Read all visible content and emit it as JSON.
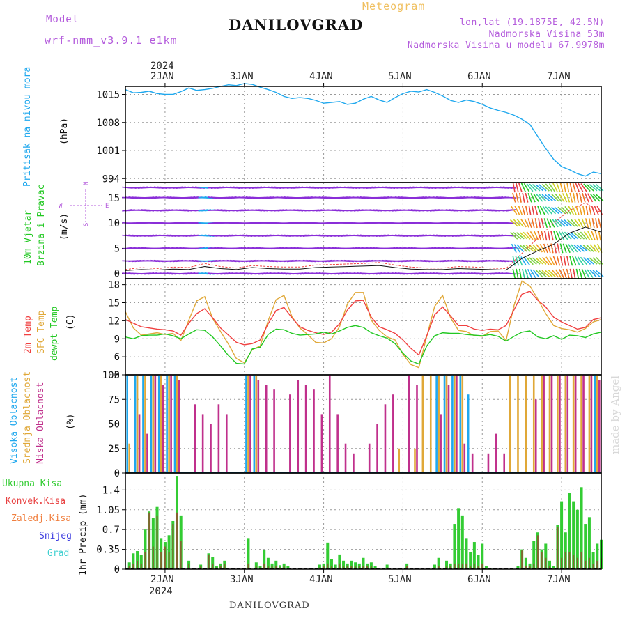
{
  "header": {
    "model_label": "Model",
    "model_name": "wrf-nmm_v3.9.1 e1km",
    "title": "DANILOVGRAD",
    "subtitle": "Meteogram",
    "lonlat": "lon,lat (19.1875E, 42.5N)",
    "elevation": "Nadmorska Visina 53m",
    "model_elevation": "Nadmorska Visina u modelu 67.9978m"
  },
  "footer": {
    "station": "DANILOVGRAD",
    "watermark": "made by Angel"
  },
  "colors": {
    "pressure": "#1fa8ee",
    "temp2m": "#f04040",
    "sfc": "#e0a838",
    "dewpt": "#22c822",
    "high_cloud": "#1fa8ee",
    "mid_cloud": "#e0a838",
    "low_cloud": "#c0308c",
    "wind_barb": "#8a2ed8",
    "total_precip": "#33cc33",
    "conv_precip": "#e84040",
    "frozen_precip": "#f08040",
    "snow": "#4040e0",
    "hail": "#40d0d0",
    "grid": "#999999"
  },
  "chart_data": [
    {
      "type": "line",
      "panel": "pressure",
      "ylabel": "Pritisak na nivou mora",
      "unit": "(hPa)",
      "x_ticks_top": [
        "2JAN",
        "3JAN",
        "4JAN",
        "5JAN",
        "6JAN",
        "7JAN"
      ],
      "year_top": "2024",
      "yticks": [
        994,
        1001,
        1008,
        1015
      ],
      "ylim": [
        993,
        1017
      ],
      "x": [
        1.5,
        1.6,
        1.7,
        1.8,
        1.9,
        2.0,
        2.1,
        2.2,
        2.3,
        2.4,
        2.5,
        2.6,
        2.7,
        2.8,
        2.9,
        3.0,
        3.1,
        3.2,
        3.3,
        3.4,
        3.5,
        3.6,
        3.7,
        3.8,
        3.9,
        4.0,
        4.1,
        4.2,
        4.3,
        4.4,
        4.5,
        4.6,
        4.7,
        4.8,
        4.9,
        5.0,
        5.1,
        5.2,
        5.3,
        5.4,
        5.5,
        5.6,
        5.7,
        5.8,
        5.9,
        6.0,
        6.1,
        6.2,
        6.3,
        6.4,
        6.5,
        6.6,
        6.7,
        6.8,
        6.9,
        7.0,
        7.1,
        7.2,
        7.3,
        7.4,
        7.5
      ],
      "values": [
        1016.2,
        1015.4,
        1015.5,
        1015.8,
        1015.2,
        1015.0,
        1015.0,
        1015.7,
        1016.6,
        1016.0,
        1016.2,
        1016.5,
        1017.0,
        1017.4,
        1017.2,
        1017.7,
        1017.5,
        1016.8,
        1016.2,
        1015.5,
        1014.5,
        1014.0,
        1014.2,
        1014.0,
        1013.5,
        1012.8,
        1013.0,
        1013.2,
        1012.5,
        1012.8,
        1013.8,
        1014.5,
        1013.6,
        1013.0,
        1014.2,
        1015.2,
        1015.8,
        1015.6,
        1016.2,
        1015.5,
        1014.6,
        1013.5,
        1013.0,
        1013.6,
        1013.2,
        1012.5,
        1011.6,
        1011.0,
        1010.5,
        1009.8,
        1008.8,
        1007.5,
        1004.5,
        1001.5,
        998.8,
        997.0,
        996.2,
        995.2,
        994.6,
        995.6,
        995.2
      ]
    },
    {
      "type": "line",
      "panel": "wind",
      "ylabel_lines": [
        "10m Vjetar",
        "Brzina i Pravac"
      ],
      "unit": "(m/s)",
      "compass": {
        "n": "N",
        "w": "W",
        "e": "E",
        "s": "S"
      },
      "yticks": [
        0,
        5,
        10,
        15
      ],
      "ylim": [
        -1,
        18
      ],
      "x": [
        1.5,
        1.7,
        1.9,
        2.1,
        2.3,
        2.5,
        2.7,
        2.9,
        3.1,
        3.3,
        3.5,
        3.7,
        3.9,
        4.1,
        4.3,
        4.5,
        4.7,
        4.9,
        5.1,
        5.3,
        5.5,
        5.7,
        5.9,
        6.1,
        6.3,
        6.5,
        6.7,
        6.9,
        7.1,
        7.3,
        7.5
      ],
      "speed_10m": [
        0.6,
        0.8,
        0.7,
        0.9,
        0.8,
        1.4,
        1.0,
        0.8,
        1.2,
        1.0,
        0.9,
        0.9,
        1.2,
        1.3,
        1.4,
        1.5,
        1.6,
        1.2,
        0.9,
        0.8,
        0.8,
        1.0,
        0.9,
        0.8,
        0.7,
        3.0,
        4.5,
        5.8,
        8.0,
        9.2,
        8.2
      ],
      "gust": [
        0.8,
        1.2,
        1.0,
        1.3,
        1.2,
        2.0,
        1.4,
        1.1,
        1.6,
        1.4,
        1.3,
        1.3,
        1.7,
        1.8,
        1.9,
        2.0,
        2.2,
        1.7,
        1.3,
        1.1,
        1.1,
        1.4,
        1.3,
        1.1,
        1.0,
        4.0,
        7.0,
        10.0,
        12.5,
        14.0,
        12.0
      ]
    },
    {
      "type": "line",
      "panel": "temperature",
      "series_labels": [
        "2m Temp",
        "SFC Temp",
        "dewpt Temp"
      ],
      "unit": "(C)",
      "yticks": [
        3,
        6,
        9,
        12,
        15,
        18
      ],
      "ylim": [
        3,
        19
      ],
      "x": [
        1.5,
        1.6,
        1.7,
        1.8,
        1.9,
        2.0,
        2.1,
        2.2,
        2.3,
        2.4,
        2.5,
        2.6,
        2.7,
        2.8,
        2.9,
        3.0,
        3.1,
        3.2,
        3.3,
        3.4,
        3.5,
        3.6,
        3.7,
        3.8,
        3.9,
        4.0,
        4.1,
        4.2,
        4.3,
        4.4,
        4.5,
        4.6,
        4.7,
        4.8,
        4.9,
        5.0,
        5.1,
        5.2,
        5.3,
        5.4,
        5.5,
        5.6,
        5.7,
        5.8,
        5.9,
        6.0,
        6.1,
        6.2,
        6.3,
        6.4,
        6.5,
        6.6,
        6.7,
        6.8,
        6.9,
        7.0,
        7.1,
        7.2,
        7.3,
        7.4,
        7.5
      ],
      "series": [
        {
          "name": "2m Temp",
          "values": [
            12.2,
            11.6,
            11.0,
            10.8,
            10.6,
            10.5,
            10.3,
            9.6,
            11.6,
            13.2,
            14.0,
            12.5,
            10.8,
            9.6,
            8.4,
            8.0,
            8.2,
            8.8,
            11.5,
            13.7,
            14.2,
            12.5,
            11.0,
            10.4,
            10.0,
            9.7,
            10.1,
            11.5,
            13.8,
            15.3,
            15.4,
            12.6,
            11.0,
            10.5,
            9.9,
            8.8,
            7.4,
            6.3,
            9.5,
            13.0,
            14.3,
            12.8,
            11.2,
            11.2,
            10.6,
            10.4,
            10.6,
            10.5,
            11.2,
            13.8,
            16.4,
            16.9,
            15.4,
            14.3,
            12.6,
            11.8,
            11.2,
            10.6,
            10.9,
            12.2,
            12.5
          ]
        },
        {
          "name": "SFC Temp",
          "values": [
            13.5,
            10.8,
            9.6,
            9.8,
            10.0,
            9.7,
            9.9,
            8.7,
            12.1,
            15.3,
            16.0,
            12.4,
            10.2,
            8.1,
            5.7,
            5.0,
            7.2,
            7.8,
            12.0,
            15.5,
            16.2,
            12.7,
            10.8,
            9.7,
            8.4,
            8.3,
            9.0,
            11.0,
            14.8,
            16.7,
            16.7,
            12.1,
            10.4,
            9.3,
            8.8,
            6.4,
            4.7,
            4.2,
            9.4,
            14.4,
            16.2,
            12.5,
            10.4,
            10.2,
            9.5,
            9.4,
            10.2,
            10.3,
            8.7,
            14.5,
            18.6,
            17.8,
            15.6,
            13.2,
            11.2,
            10.7,
            10.5,
            10.1,
            10.7,
            11.8,
            12.2
          ]
        },
        {
          "name": "dewpt Temp",
          "values": [
            9.3,
            9.0,
            9.5,
            9.6,
            9.6,
            9.8,
            9.5,
            9.0,
            9.8,
            10.5,
            10.4,
            9.3,
            7.8,
            6.2,
            4.9,
            4.8,
            7.3,
            7.6,
            9.7,
            10.6,
            10.5,
            9.9,
            9.6,
            9.7,
            9.8,
            10.1,
            9.8,
            10.3,
            10.9,
            11.2,
            10.9,
            10.0,
            9.5,
            9.1,
            8.2,
            6.6,
            5.3,
            4.8,
            7.8,
            9.5,
            10.0,
            9.9,
            9.9,
            9.7,
            9.6,
            9.5,
            9.7,
            9.4,
            8.6,
            9.4,
            10.1,
            10.3,
            9.3,
            9.0,
            9.5,
            8.9,
            9.6,
            9.5,
            9.2,
            9.8,
            10.1
          ]
        }
      ]
    },
    {
      "type": "bar",
      "panel": "clouds",
      "series_labels": [
        "Visoka Oblacnost",
        "Srednja Oblacnost",
        "Niska Oblacnost"
      ],
      "unit": "(%)",
      "yticks": [
        0,
        25,
        50,
        75,
        100
      ],
      "ylim": [
        0,
        100
      ],
      "x": [
        1.55,
        1.65,
        1.75,
        1.85,
        1.95,
        2.05,
        2.15,
        2.25,
        2.35,
        2.45,
        2.55,
        2.65,
        2.75,
        2.85,
        2.95,
        3.05,
        3.15,
        3.25,
        3.35,
        3.45,
        3.55,
        3.65,
        3.75,
        3.85,
        3.95,
        4.05,
        4.15,
        4.25,
        4.35,
        4.45,
        4.55,
        4.65,
        4.75,
        4.85,
        4.95,
        5.05,
        5.15,
        5.25,
        5.35,
        5.45,
        5.55,
        5.65,
        5.75,
        5.85,
        5.95,
        6.05,
        6.15,
        6.25,
        6.35,
        6.45,
        6.55,
        6.65,
        6.75,
        6.85,
        6.95,
        7.05,
        7.15,
        7.25,
        7.35,
        7.45
      ],
      "series": [
        {
          "name": "Visoka Oblacnost",
          "values": [
            100,
            100,
            100,
            100,
            100,
            100,
            100,
            0,
            0,
            0,
            0,
            0,
            0,
            0,
            0,
            100,
            100,
            0,
            0,
            0,
            0,
            0,
            0,
            0,
            0,
            0,
            0,
            0,
            0,
            0,
            0,
            0,
            0,
            0,
            0,
            0,
            0,
            0,
            0,
            100,
            100,
            100,
            100,
            80,
            0,
            0,
            0,
            0,
            0,
            0,
            0,
            0,
            0,
            0,
            0,
            0,
            0,
            0,
            0,
            100
          ]
        },
        {
          "name": "Srednja Oblacnost",
          "values": [
            30,
            100,
            100,
            100,
            100,
            100,
            100,
            0,
            0,
            0,
            0,
            0,
            0,
            0,
            0,
            100,
            100,
            0,
            0,
            0,
            0,
            0,
            0,
            0,
            0,
            0,
            0,
            0,
            0,
            0,
            0,
            0,
            0,
            0,
            25,
            0,
            25,
            100,
            100,
            100,
            100,
            100,
            100,
            0,
            0,
            0,
            0,
            0,
            100,
            100,
            100,
            100,
            100,
            100,
            100,
            100,
            100,
            100,
            100,
            100
          ]
        },
        {
          "name": "Niska Oblacnost",
          "values": [
            0,
            60,
            40,
            100,
            90,
            100,
            95,
            0,
            70,
            60,
            50,
            70,
            60,
            0,
            0,
            100,
            95,
            90,
            85,
            0,
            80,
            95,
            90,
            85,
            60,
            100,
            60,
            30,
            20,
            0,
            30,
            50,
            70,
            80,
            0,
            100,
            90,
            0,
            0,
            60,
            90,
            100,
            30,
            20,
            0,
            20,
            40,
            20,
            0,
            0,
            0,
            75,
            100,
            100,
            100,
            100,
            100,
            100,
            100,
            95
          ]
        }
      ]
    },
    {
      "type": "bar",
      "panel": "precipitation",
      "series_labels": [
        "Ukupna Kisa",
        "Konvek.Kisa",
        "Zaledj.Kisa",
        "Snijeg",
        "Grad"
      ],
      "unit": "1hr Precip (mm)",
      "yticks": [
        0,
        0.35,
        0.7,
        1.05,
        1.4
      ],
      "ylim": [
        0,
        1.7
      ],
      "x_ticks_bottom": [
        "2JAN",
        "3JAN",
        "4JAN",
        "5JAN",
        "6JAN",
        "7JAN"
      ],
      "year_bottom": "2024",
      "x": [
        1.55,
        1.6,
        1.65,
        1.7,
        1.75,
        1.8,
        1.85,
        1.9,
        1.95,
        2.0,
        2.05,
        2.1,
        2.15,
        2.2,
        2.3,
        2.45,
        2.55,
        2.6,
        2.65,
        2.7,
        2.75,
        3.05,
        3.15,
        3.2,
        3.25,
        3.3,
        3.35,
        3.4,
        3.45,
        3.5,
        3.55,
        3.95,
        4.0,
        4.05,
        4.1,
        4.15,
        4.2,
        4.25,
        4.3,
        4.35,
        4.4,
        4.45,
        4.5,
        4.55,
        4.6,
        4.65,
        4.7,
        4.8,
        5.05,
        5.4,
        5.45,
        5.55,
        5.6,
        5.65,
        5.7,
        5.75,
        5.8,
        5.85,
        5.9,
        5.95,
        6.0,
        6.05,
        6.1,
        6.45,
        6.5,
        6.55,
        6.6,
        6.65,
        6.7,
        6.75,
        6.8,
        6.85,
        6.9,
        6.95,
        7.0,
        7.05,
        7.1,
        7.15,
        7.2,
        7.25,
        7.3,
        7.35,
        7.4,
        7.45,
        7.5
      ],
      "series": [
        {
          "name": "Ukupna Kisa",
          "values": [
            0.12,
            0.28,
            0.32,
            0.25,
            0.7,
            1.02,
            0.9,
            1.1,
            0.55,
            0.48,
            0.6,
            0.85,
            1.65,
            0.95,
            0.15,
            0.08,
            0.28,
            0.22,
            0.05,
            0.1,
            0.15,
            0.55,
            0.12,
            0.06,
            0.34,
            0.2,
            0.1,
            0.15,
            0.07,
            0.1,
            0.05,
            0.08,
            0.1,
            0.47,
            0.18,
            0.08,
            0.26,
            0.15,
            0.1,
            0.15,
            0.12,
            0.1,
            0.2,
            0.1,
            0.12,
            0.05,
            0.02,
            0.08,
            0.1,
            0.08,
            0.2,
            0.15,
            0.1,
            0.8,
            1.08,
            0.95,
            0.55,
            0.3,
            0.48,
            0.25,
            0.45,
            0.05,
            0.02,
            0.05,
            0.35,
            0.2,
            0.1,
            0.5,
            0.65,
            0.35,
            0.45,
            0.15,
            0.05,
            0.78,
            1.2,
            0.65,
            1.35,
            1.2,
            1.05,
            1.45,
            0.8,
            0.92,
            0.3,
            0.45,
            0.52
          ]
        },
        {
          "name": "Konvek.Kisa",
          "values": [
            0.05,
            0.1,
            0.15,
            0.1,
            0.3,
            1.0,
            0.4,
            0.95,
            0.3,
            0.4,
            0.3,
            0.8,
            1.0,
            0.5,
            0.1,
            0.05,
            0.25,
            0.1,
            0.03,
            0.05,
            0.1,
            0.1,
            0.05,
            0.03,
            0.1,
            0.05,
            0.05,
            0.05,
            0.03,
            0.05,
            0.02,
            0.03,
            0.05,
            0.1,
            0.05,
            0.03,
            0.1,
            0.05,
            0.05,
            0.05,
            0.05,
            0.05,
            0.05,
            0.05,
            0.05,
            0.02,
            0.01,
            0.03,
            0.05,
            0.03,
            0.05,
            0.05,
            0.05,
            0.1,
            0.1,
            0.1,
            0.1,
            0.05,
            0.1,
            0.05,
            0.1,
            0.02,
            0.01,
            0.02,
            0.33,
            0.05,
            0.05,
            0.1,
            0.6,
            0.3,
            0.2,
            0.05,
            0.02,
            0.75,
            0.2,
            0.3,
            0.3,
            0.25,
            0.2,
            0.3,
            0.15,
            0.2,
            0.1,
            0.15,
            0.2
          ]
        }
      ]
    }
  ]
}
